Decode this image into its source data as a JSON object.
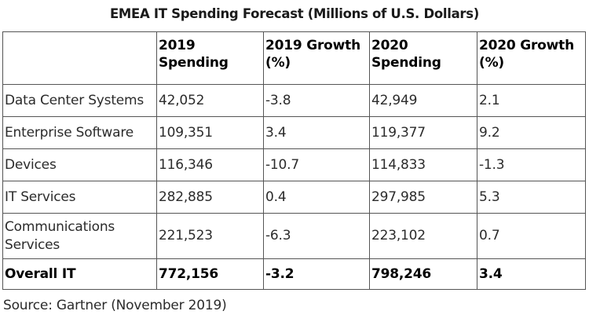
{
  "title": "EMEA IT Spending Forecast (Millions of U.S. Dollars)",
  "headers": [
    "",
    "2019 Spending",
    "2019 Growth (%)",
    "2020 Spending",
    "2020 Growth (%)"
  ],
  "rows": [
    [
      "Data Center Systems",
      "42,052",
      "-3.8",
      "42,949",
      "2.1"
    ],
    [
      "Enterprise Software",
      "109,351",
      "3.4",
      "119,377",
      "9.2"
    ],
    [
      "Devices",
      "116,346",
      "-10.7",
      "114,833",
      "-1.3"
    ],
    [
      "IT Services",
      "282,885",
      "0.4",
      "297,985",
      "5.3"
    ],
    [
      "Communications Services",
      "221,523",
      "-6.3",
      "223,102",
      "0.7"
    ]
  ],
  "total": [
    "Overall IT",
    "772,156",
    "-3.2",
    "798,246",
    "3.4"
  ],
  "source": "Source: Gartner (November 2019)"
}
